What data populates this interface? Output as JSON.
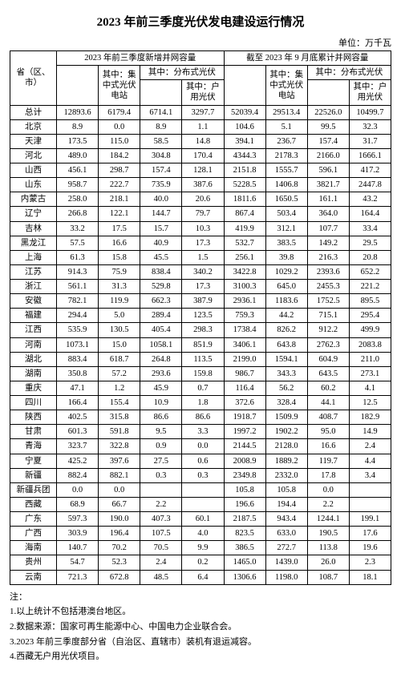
{
  "title": "2023 年前三季度光伏发电建设运行情况",
  "unit": "单位：万千瓦",
  "header": {
    "col_region": "省（区、市）",
    "group1": "2023 年前三季度新增并网容量",
    "group2": "截至 2023 年 9 月底累计并网容量",
    "g1_sub1": "其中：集中式光伏电站",
    "g1_sub2": "其中：分布式光伏",
    "g1_sub2a": "其中：户用光伏",
    "g2_sub1": "其中：集中式光伏电站",
    "g2_sub2": "其中：分布式光伏",
    "g2_sub2a": "其中：户用光伏"
  },
  "rows": [
    [
      "总计",
      "12893.6",
      "6179.4",
      "6714.1",
      "3297.7",
      "52039.4",
      "29513.4",
      "22526.0",
      "10499.7"
    ],
    [
      "北京",
      "8.9",
      "0.0",
      "8.9",
      "1.1",
      "104.6",
      "5.1",
      "99.5",
      "32.3"
    ],
    [
      "天津",
      "173.5",
      "115.0",
      "58.5",
      "14.8",
      "394.1",
      "236.7",
      "157.4",
      "31.7"
    ],
    [
      "河北",
      "489.0",
      "184.2",
      "304.8",
      "170.4",
      "4344.3",
      "2178.3",
      "2166.0",
      "1666.1"
    ],
    [
      "山西",
      "456.1",
      "298.7",
      "157.4",
      "128.1",
      "2151.8",
      "1555.7",
      "596.1",
      "417.2"
    ],
    [
      "山东",
      "958.7",
      "222.7",
      "735.9",
      "387.6",
      "5228.5",
      "1406.8",
      "3821.7",
      "2447.8"
    ],
    [
      "内蒙古",
      "258.0",
      "218.1",
      "40.0",
      "20.6",
      "1811.6",
      "1650.5",
      "161.1",
      "43.2"
    ],
    [
      "辽宁",
      "266.8",
      "122.1",
      "144.7",
      "79.7",
      "867.4",
      "503.4",
      "364.0",
      "164.4"
    ],
    [
      "吉林",
      "33.2",
      "17.5",
      "15.7",
      "10.3",
      "419.9",
      "312.1",
      "107.7",
      "33.4"
    ],
    [
      "黑龙江",
      "57.5",
      "16.6",
      "40.9",
      "17.3",
      "532.7",
      "383.5",
      "149.2",
      "29.5"
    ],
    [
      "上海",
      "61.3",
      "15.8",
      "45.5",
      "1.5",
      "256.1",
      "39.8",
      "216.3",
      "20.8"
    ],
    [
      "江苏",
      "914.3",
      "75.9",
      "838.4",
      "340.2",
      "3422.8",
      "1029.2",
      "2393.6",
      "652.2"
    ],
    [
      "浙江",
      "561.1",
      "31.3",
      "529.8",
      "17.3",
      "3100.3",
      "645.0",
      "2455.3",
      "221.2"
    ],
    [
      "安徽",
      "782.1",
      "119.9",
      "662.3",
      "387.9",
      "2936.1",
      "1183.6",
      "1752.5",
      "895.5"
    ],
    [
      "福建",
      "294.4",
      "5.0",
      "289.4",
      "123.5",
      "759.3",
      "44.2",
      "715.1",
      "295.4"
    ],
    [
      "江西",
      "535.9",
      "130.5",
      "405.4",
      "298.3",
      "1738.4",
      "826.2",
      "912.2",
      "499.9"
    ],
    [
      "河南",
      "1073.1",
      "15.0",
      "1058.1",
      "851.9",
      "3406.1",
      "643.8",
      "2762.3",
      "2083.8"
    ],
    [
      "湖北",
      "883.4",
      "618.7",
      "264.8",
      "113.5",
      "2199.0",
      "1594.1",
      "604.9",
      "211.0"
    ],
    [
      "湖南",
      "350.8",
      "57.2",
      "293.6",
      "159.8",
      "986.7",
      "343.3",
      "643.5",
      "273.1"
    ],
    [
      "重庆",
      "47.1",
      "1.2",
      "45.9",
      "0.7",
      "116.4",
      "56.2",
      "60.2",
      "4.1"
    ],
    [
      "四川",
      "166.4",
      "155.4",
      "10.9",
      "1.8",
      "372.6",
      "328.4",
      "44.1",
      "12.5"
    ],
    [
      "陕西",
      "402.5",
      "315.8",
      "86.6",
      "86.6",
      "1918.7",
      "1509.9",
      "408.7",
      "182.9"
    ],
    [
      "甘肃",
      "601.3",
      "591.8",
      "9.5",
      "3.3",
      "1997.2",
      "1902.2",
      "95.0",
      "14.9"
    ],
    [
      "青海",
      "323.7",
      "322.8",
      "0.9",
      "0.0",
      "2144.5",
      "2128.0",
      "16.6",
      "2.4"
    ],
    [
      "宁夏",
      "425.2",
      "397.6",
      "27.5",
      "0.6",
      "2008.9",
      "1889.2",
      "119.7",
      "4.4"
    ],
    [
      "新疆",
      "882.4",
      "882.1",
      "0.3",
      "0.3",
      "2349.8",
      "2332.0",
      "17.8",
      "3.4"
    ],
    [
      "新疆兵团",
      "0.0",
      "0.0",
      "",
      "",
      "105.8",
      "105.8",
      "0.0",
      ""
    ],
    [
      "西藏",
      "68.9",
      "66.7",
      "2.2",
      "",
      "196.6",
      "194.4",
      "2.2",
      ""
    ],
    [
      "广东",
      "597.3",
      "190.0",
      "407.3",
      "60.1",
      "2187.5",
      "943.4",
      "1244.1",
      "199.1"
    ],
    [
      "广西",
      "303.9",
      "196.4",
      "107.5",
      "4.0",
      "823.5",
      "633.0",
      "190.5",
      "17.6"
    ],
    [
      "海南",
      "140.7",
      "70.2",
      "70.5",
      "9.9",
      "386.5",
      "272.7",
      "113.8",
      "19.6"
    ],
    [
      "贵州",
      "54.7",
      "52.3",
      "2.4",
      "0.2",
      "1465.0",
      "1439.0",
      "26.0",
      "2.3"
    ],
    [
      "云南",
      "721.3",
      "672.8",
      "48.5",
      "6.4",
      "1306.6",
      "1198.0",
      "108.7",
      "18.1"
    ]
  ],
  "notes_heading": "注：",
  "notes": [
    "1.以上统计不包括港澳台地区。",
    "2.数据来源：国家可再生能源中心、中国电力企业联合会。",
    "3.2023 年前三季度部分省（自治区、直辖市）装机有退运减容。",
    "4.西藏无户用光伏项目。"
  ]
}
